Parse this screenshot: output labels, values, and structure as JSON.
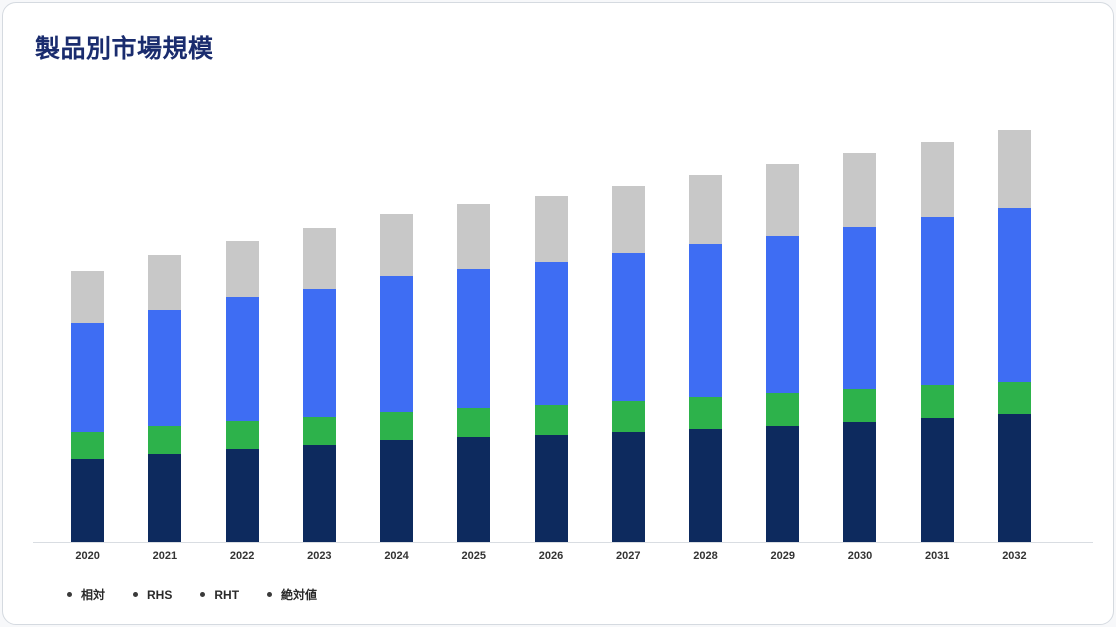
{
  "header": {
    "title": "製品別市場規模"
  },
  "chart_data": {
    "type": "bar",
    "stacked": true,
    "title": "製品別市場規模",
    "xlabel": "",
    "ylabel": "",
    "ylim": [
      0,
      440
    ],
    "grid": false,
    "legend_position": "bottom-left",
    "legend_dot_color": "#3a3a3a",
    "categories": [
      "2020",
      "2021",
      "2022",
      "2023",
      "2024",
      "2025",
      "2026",
      "2027",
      "2028",
      "2029",
      "2030",
      "2031",
      "2032"
    ],
    "series": [
      {
        "key": "soutai",
        "name": "相対",
        "color": "#0d2a5e",
        "values": [
          83,
          88,
          93,
          97,
          102,
          105,
          107,
          110,
          113,
          116,
          120,
          124,
          128
        ]
      },
      {
        "key": "rhs",
        "name": "RHS",
        "color": "#2db24b",
        "values": [
          27,
          28,
          28,
          28,
          28,
          29,
          30,
          31,
          32,
          33,
          33,
          33,
          32
        ]
      },
      {
        "key": "rht",
        "name": "RHT",
        "color": "#3e6df3",
        "values": [
          110,
          117,
          125,
          129,
          137,
          140,
          144,
          149,
          154,
          158,
          163,
          169,
          175
        ]
      },
      {
        "key": "zettaichi",
        "name": "絶対値",
        "color": "#c8c8c8",
        "values": [
          52,
          55,
          56,
          61,
          62,
          65,
          66,
          67,
          69,
          72,
          74,
          75,
          78
        ]
      }
    ]
  }
}
